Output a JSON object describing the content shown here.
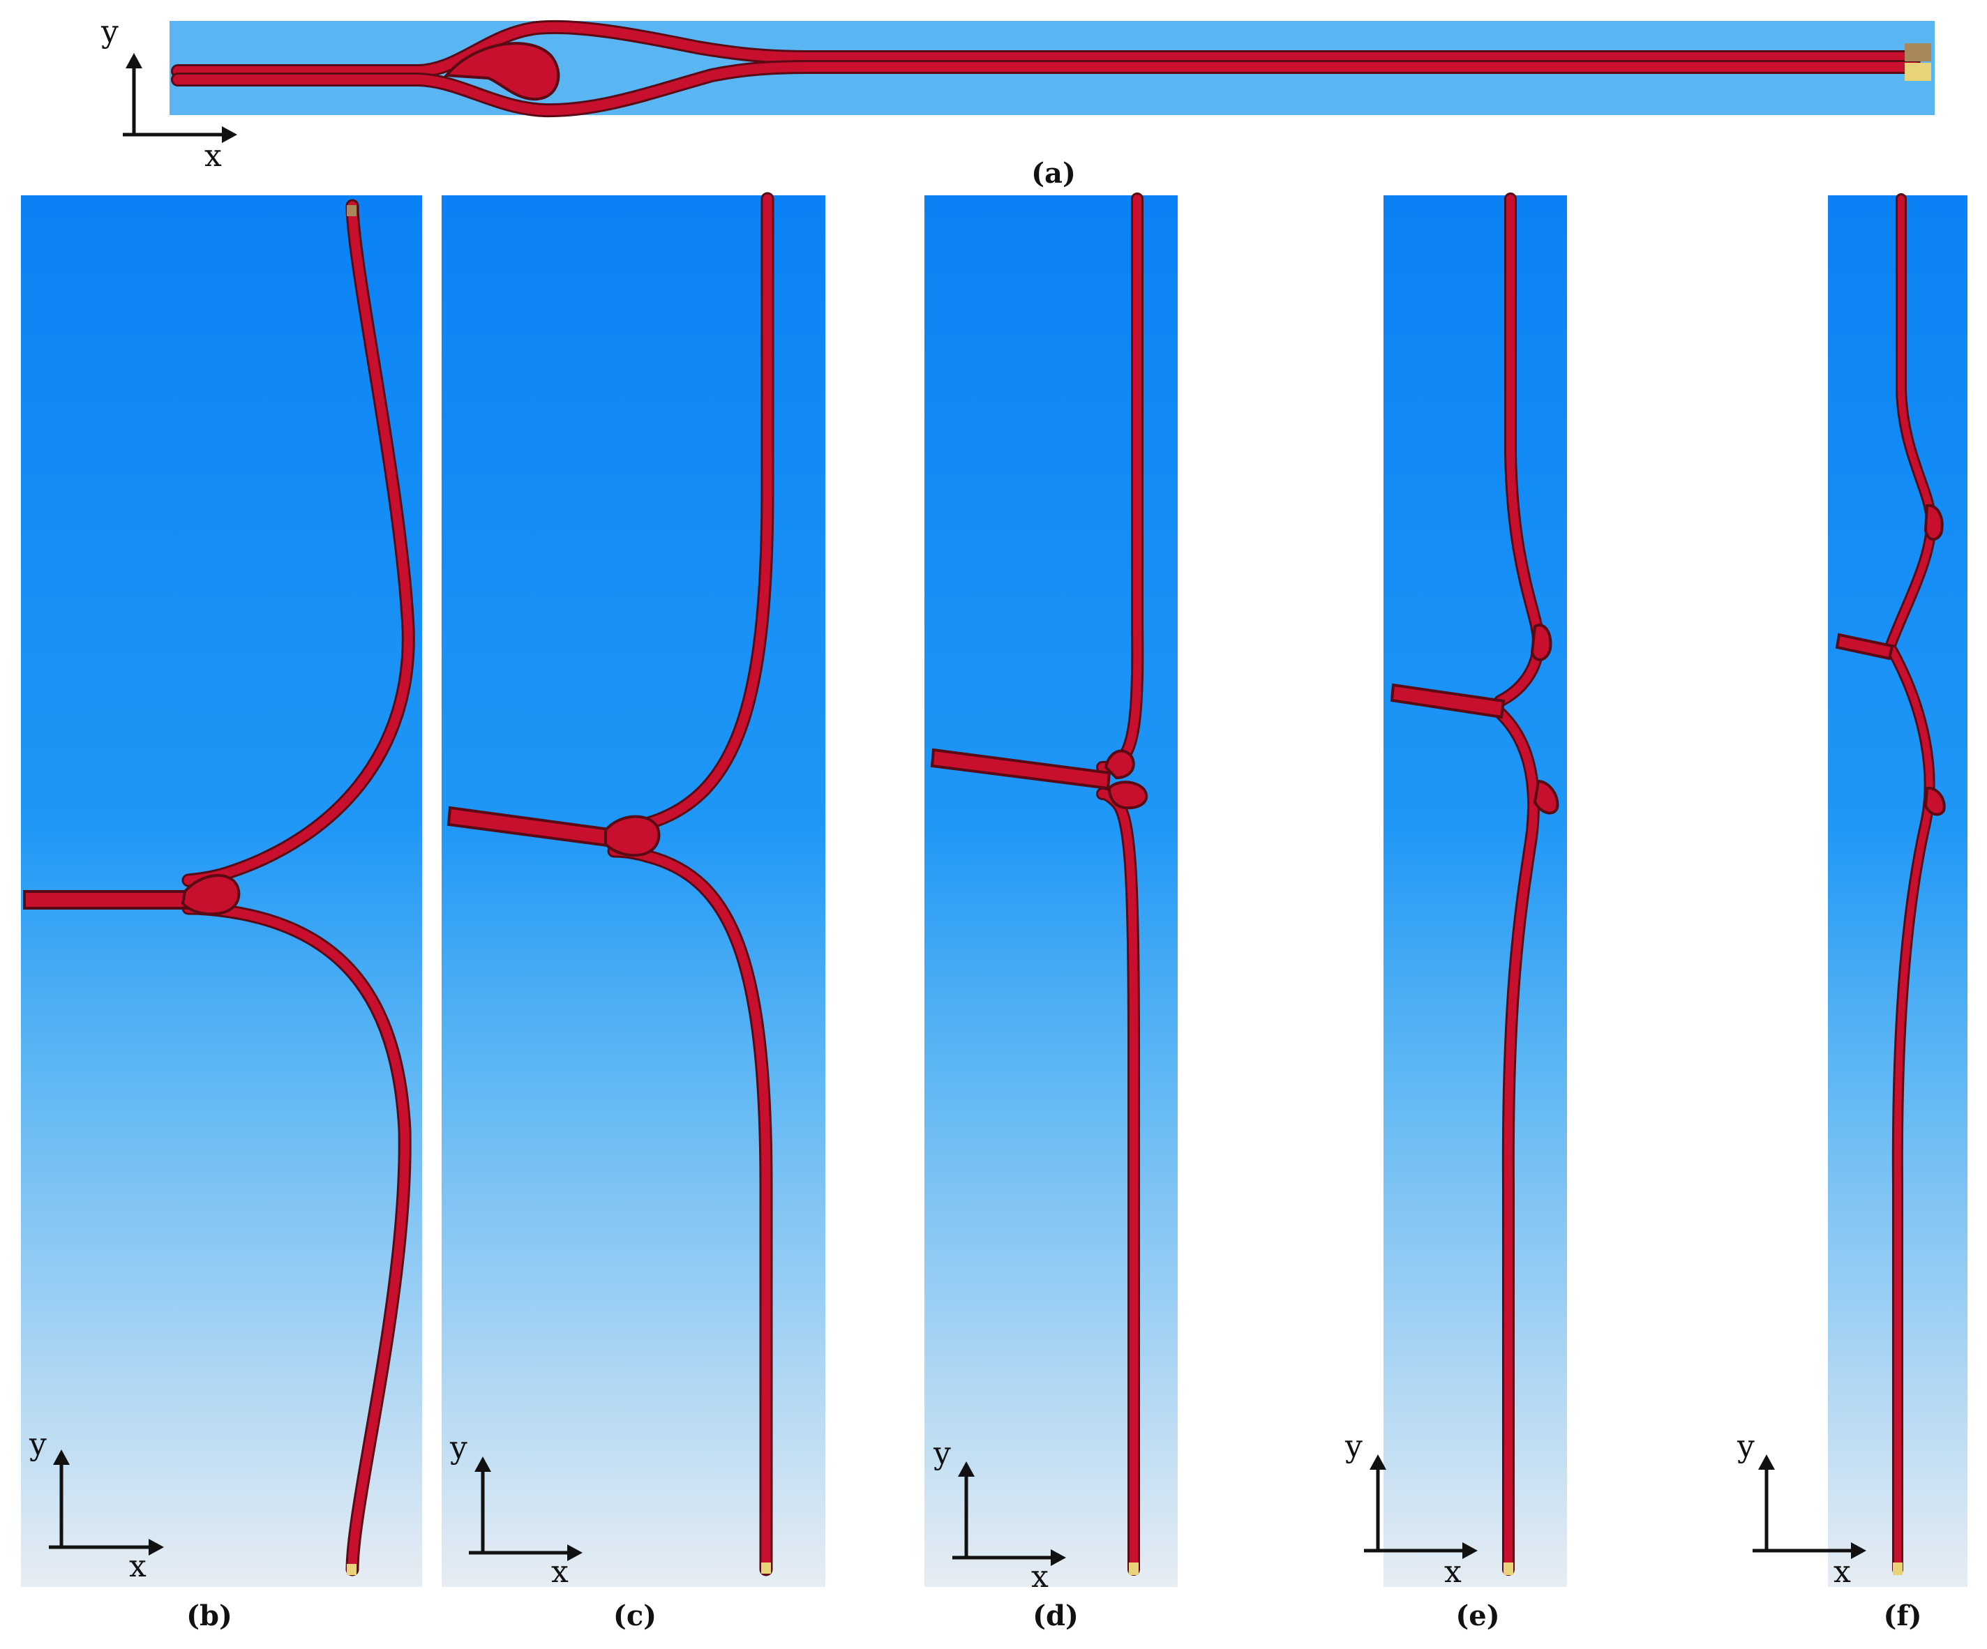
{
  "figure": {
    "panels": [
      {
        "id": "a",
        "caption": "(a)"
      },
      {
        "id": "b",
        "caption": "(b)"
      },
      {
        "id": "c",
        "caption": "(c)"
      },
      {
        "id": "d",
        "caption": "(d)"
      },
      {
        "id": "e",
        "caption": "(e)"
      },
      {
        "id": "f",
        "caption": "(f)"
      }
    ],
    "axis_labels": {
      "x": "x",
      "y": "y"
    },
    "colors": {
      "panel_a_background": "#5ab6f3",
      "gradient_top": "#0a82f5",
      "gradient_mid": "#4fb0f6",
      "gradient_bottom": "#e6ecf2",
      "strip_fill": "#c8102e",
      "strip_edge": "#5a0a14",
      "end_cap_light": "#e8d27a",
      "end_cap_dark": "#a8885a"
    }
  }
}
